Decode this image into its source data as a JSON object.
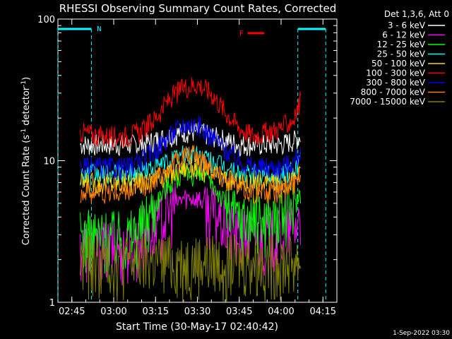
{
  "chart_data": {
    "type": "line",
    "title": "RHESSI Observing Summary Count Rates, Corrected",
    "xlabel": "Start Time (30-May-17 02:40:42)",
    "ylabel": "Corrected Count Rate (s⁻¹ detector⁻¹)",
    "ylabel_parts": [
      "Corrected Count Rate (s",
      "-1",
      " detector",
      "-1",
      ")"
    ],
    "yscale": "log",
    "ylim": [
      1,
      100
    ],
    "xlim_minutes": [
      "02:40",
      "04:20"
    ],
    "x_ticks": [
      "02:45",
      "03:00",
      "03:15",
      "03:30",
      "03:45",
      "04:00",
      "04:15"
    ],
    "y_ticks": [
      "1",
      "10",
      "100"
    ],
    "legend_title": "Det 1,3,6, Att 0",
    "legend_position": "right",
    "flags": {
      "n_label": "N",
      "f_label": "F",
      "night_intervals": [
        [
          "02:40",
          "02:52"
        ],
        [
          "04:06",
          "04:16"
        ]
      ],
      "flare_range": [
        "03:48",
        "03:54"
      ]
    },
    "x": [
      "02:48",
      "02:55",
      "03:00",
      "03:05",
      "03:10",
      "03:15",
      "03:20",
      "03:25",
      "03:30",
      "03:35",
      "03:40",
      "03:45",
      "03:50",
      "03:55",
      "04:00",
      "04:05",
      "04:07"
    ],
    "series": [
      {
        "name": "3 - 6 keV",
        "color": "#ffffff",
        "values": [
          13,
          13,
          13,
          13,
          13,
          14,
          15,
          16,
          16,
          15,
          14,
          13,
          13,
          13,
          13,
          14,
          15
        ]
      },
      {
        "name": "6 - 12 keV",
        "color": "#ff00ff",
        "values": [
          2.5,
          2.5,
          2.5,
          2.5,
          2.8,
          3.5,
          4.5,
          5.5,
          5.5,
          4.5,
          3.5,
          3,
          3,
          3,
          3,
          3.5,
          4
        ]
      },
      {
        "name": "12 - 25 keV",
        "color": "#00ff00",
        "values": [
          3,
          3,
          3,
          3,
          3.5,
          5,
          7,
          8,
          8,
          7,
          5,
          4,
          4,
          4,
          4,
          5,
          6
        ]
      },
      {
        "name": "25 - 50 keV",
        "color": "#00ffff",
        "values": [
          8,
          8,
          8,
          8,
          8.5,
          9,
          10,
          11,
          11,
          10,
          9,
          8,
          8,
          8,
          8,
          9,
          10
        ]
      },
      {
        "name": "50 - 100 keV",
        "color": "#ffd700",
        "values": [
          7,
          7,
          7,
          7,
          7,
          7.5,
          8,
          9,
          9,
          8,
          7.5,
          7,
          7,
          7,
          7,
          7.5,
          8
        ]
      },
      {
        "name": "100 - 300 keV",
        "color": "#ff0000",
        "values": [
          16,
          15,
          15,
          15,
          16,
          20,
          27,
          33,
          35,
          30,
          22,
          17,
          15,
          16,
          17,
          20,
          27
        ]
      },
      {
        "name": "300 - 800 keV",
        "color": "#0000ff",
        "values": [
          9,
          9,
          9,
          9,
          10,
          12,
          15,
          18,
          18,
          15,
          12,
          10,
          9,
          9,
          9,
          10,
          12
        ]
      },
      {
        "name": "800 - 7000 keV",
        "color": "#ff8000",
        "values": [
          6,
          6,
          6,
          6,
          6.5,
          7.5,
          9,
          11,
          11,
          9,
          7.5,
          6.5,
          6,
          6,
          6,
          7,
          8
        ]
      },
      {
        "name": "7000 - 15000 keV",
        "color": "#808000",
        "values": [
          2,
          2,
          2,
          2,
          2,
          2,
          2,
          2,
          2,
          2,
          2,
          2,
          2,
          2,
          2,
          2,
          2
        ]
      }
    ],
    "footer_date": "1-Sep-2022 03:30"
  }
}
